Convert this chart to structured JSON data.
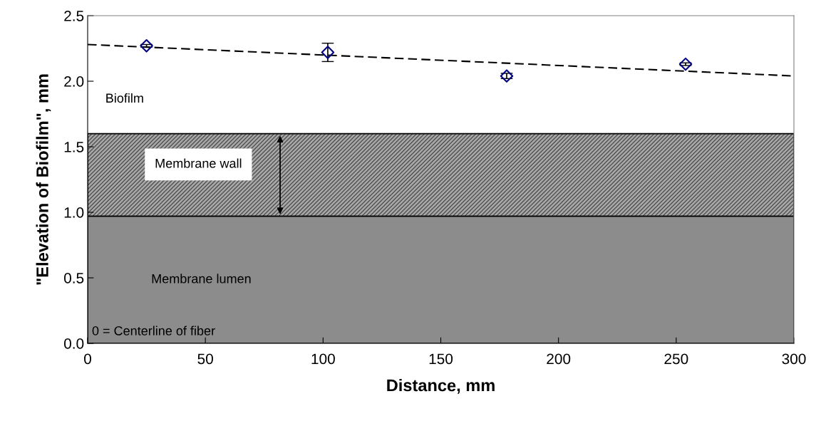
{
  "chart_data": {
    "type": "scatter",
    "xlabel": "Distance, mm",
    "ylabel": "\"Elevation of Biofilm\", mm",
    "xlim": [
      0,
      300
    ],
    "xticks": [
      0,
      50,
      100,
      150,
      200,
      250,
      300
    ],
    "ylim": [
      0.0,
      2.5
    ],
    "yticks": [
      {
        "value": 0,
        "label": "0.0"
      },
      0.5,
      {
        "value": 1,
        "label": "1.0"
      },
      1.5,
      {
        "value": 2,
        "label": "2.0"
      },
      2.5
    ],
    "series": [
      {
        "color": "#000080",
        "marker": "diamond",
        "x": [
          25,
          102,
          178,
          254
        ],
        "values": [
          2.27,
          2.22,
          2.04,
          2.13
        ],
        "errors": [
          0.01,
          0.07,
          0.02,
          0.01
        ]
      },
      {
        "type": "line",
        "color": "#000000",
        "line_style": "dashed",
        "marker": "none",
        "x": [
          0,
          300
        ],
        "values": [
          2.28,
          2.04
        ]
      }
    ],
    "bands": [
      {
        "axis": "y",
        "from": 0.97,
        "to": 1.6,
        "label": "Membrane wall",
        "color": "#a8a8a8"
      },
      {
        "axis": "y",
        "from": 0,
        "to": 0.97,
        "label": "Membrane lumen",
        "color": "#8c8c8c"
      }
    ],
    "annotations": [
      "Biofilm",
      "0 = Centerline of fiber"
    ],
    "grid": false,
    "legend": false
  }
}
